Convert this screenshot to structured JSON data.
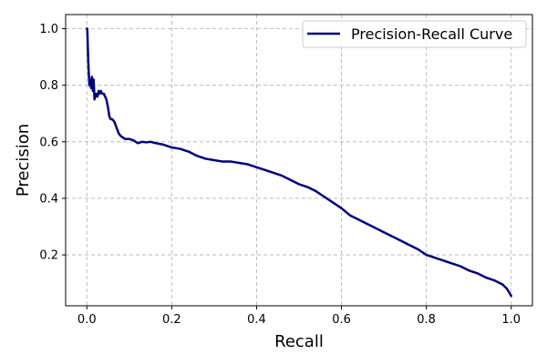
{
  "chart_data": {
    "type": "line",
    "title": "",
    "xlabel": "Recall",
    "ylabel": "Precision",
    "xlim": [
      -0.05,
      1.05
    ],
    "ylim": [
      0.02,
      1.05
    ],
    "xticks": [
      0.0,
      0.2,
      0.4,
      0.6,
      0.8,
      1.0
    ],
    "yticks": [
      0.2,
      0.4,
      0.6,
      0.8,
      1.0
    ],
    "xtick_labels": [
      "0.0",
      "0.2",
      "0.4",
      "0.6",
      "0.8",
      "1.0"
    ],
    "ytick_labels": [
      "0.2",
      "0.4",
      "0.6",
      "0.8",
      "1.0"
    ],
    "grid": true,
    "legend": "top-right",
    "series": [
      {
        "name": "Precision-Recall Curve",
        "color": "#000080",
        "x": [
          0.0,
          0.001,
          0.002,
          0.003,
          0.004,
          0.005,
          0.006,
          0.008,
          0.01,
          0.012,
          0.014,
          0.016,
          0.018,
          0.02,
          0.022,
          0.025,
          0.028,
          0.03,
          0.033,
          0.036,
          0.04,
          0.043,
          0.046,
          0.05,
          0.053,
          0.056,
          0.06,
          0.065,
          0.07,
          0.075,
          0.08,
          0.09,
          0.1,
          0.11,
          0.12,
          0.13,
          0.14,
          0.15,
          0.16,
          0.18,
          0.2,
          0.22,
          0.24,
          0.26,
          0.28,
          0.3,
          0.32,
          0.34,
          0.36,
          0.38,
          0.4,
          0.42,
          0.44,
          0.46,
          0.48,
          0.5,
          0.52,
          0.54,
          0.56,
          0.58,
          0.6,
          0.62,
          0.64,
          0.66,
          0.68,
          0.7,
          0.72,
          0.74,
          0.76,
          0.78,
          0.8,
          0.82,
          0.84,
          0.86,
          0.88,
          0.9,
          0.92,
          0.94,
          0.96,
          0.98,
          0.99,
          1.0
        ],
        "y": [
          1.0,
          1.0,
          0.95,
          0.9,
          0.86,
          0.83,
          0.8,
          0.82,
          0.79,
          0.83,
          0.78,
          0.82,
          0.75,
          0.76,
          0.77,
          0.76,
          0.78,
          0.77,
          0.78,
          0.77,
          0.77,
          0.76,
          0.75,
          0.72,
          0.69,
          0.68,
          0.68,
          0.67,
          0.65,
          0.63,
          0.62,
          0.61,
          0.61,
          0.605,
          0.595,
          0.6,
          0.598,
          0.6,
          0.596,
          0.59,
          0.58,
          0.575,
          0.565,
          0.55,
          0.54,
          0.535,
          0.53,
          0.53,
          0.525,
          0.52,
          0.51,
          0.5,
          0.49,
          0.48,
          0.465,
          0.45,
          0.44,
          0.425,
          0.405,
          0.385,
          0.365,
          0.34,
          0.325,
          0.31,
          0.295,
          0.28,
          0.265,
          0.25,
          0.235,
          0.22,
          0.2,
          0.19,
          0.18,
          0.17,
          0.16,
          0.145,
          0.135,
          0.12,
          0.11,
          0.095,
          0.08,
          0.055
        ]
      }
    ]
  }
}
